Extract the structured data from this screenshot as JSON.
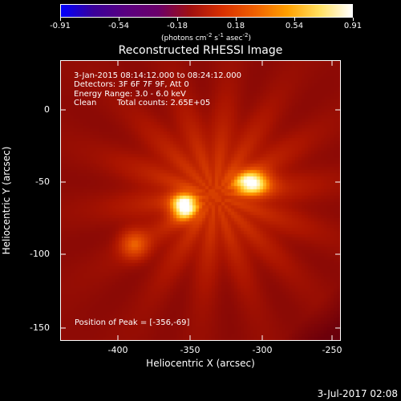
{
  "colorbar": {
    "tick_labels": [
      "-0.91",
      "-0.54",
      "-0.18",
      "0.18",
      "0.54",
      "0.91"
    ],
    "units": {
      "part1": "(photons cm",
      "exp1": "-2",
      "part2": " s",
      "exp2": "-1",
      "part3": " asec",
      "exp3": "-2",
      "part4": ")"
    },
    "colors": [
      "#0000ff",
      "#3a0099",
      "#5a0080",
      "#6a006a",
      "#a01010",
      "#d83000",
      "#f06000",
      "#ffa000",
      "#ffe060",
      "#ffffff"
    ]
  },
  "plot": {
    "title": "Reconstructed RHESSI Image",
    "annotations": {
      "time_range": "3-Jan-2015 08:14:12.000 to 08:24:12.000",
      "detectors": "Detectors: 3F 6F 7F 9F, Att 0",
      "energy": "Energy Range: 3.0 - 6.0 keV",
      "clean_label": "Clean",
      "total_counts": "Total counts: 2.65E+05",
      "peak": "Position of Peak = [-356,-69]"
    },
    "y_ticks": [
      "0",
      "-50",
      "-100",
      "-150"
    ],
    "x_ticks": [
      "-400",
      "-350",
      "-300",
      "-250"
    ],
    "y_label": "Heliocentric Y (arcsec)",
    "x_label": "Heliocentric X (arcsec)",
    "sources": [
      {
        "x": -356,
        "y": -69,
        "peak": 1.0
      },
      {
        "x": -310,
        "y": -53,
        "peak": 0.95
      },
      {
        "x": -390,
        "y": -95,
        "peak": 0.4
      }
    ]
  },
  "footer": {
    "timestamp": "3-Jul-2017 02:08"
  }
}
